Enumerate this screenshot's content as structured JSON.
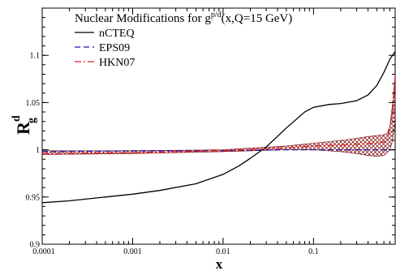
{
  "chart_data": {
    "type": "line",
    "title": "",
    "xlabel": "x",
    "ylabel": {
      "main": "R",
      "sub": "g",
      "sup": "d"
    },
    "xscale": "log",
    "xlim": [
      0.0001,
      0.8
    ],
    "ylim": [
      0.9,
      1.15
    ],
    "grid": false,
    "legend_placement": "top-left",
    "x_ticks": [
      {
        "value": 0.0001,
        "label": "0.0001"
      },
      {
        "value": 0.001,
        "label": "0.001"
      },
      {
        "value": 0.01,
        "label": "0.01"
      },
      {
        "value": 0.1,
        "label": "0.1"
      }
    ],
    "y_ticks": [
      {
        "value": 0.9,
        "label": "0.9"
      },
      {
        "value": 0.95,
        "label": "0.95"
      },
      {
        "value": 1.0,
        "label": "1"
      },
      {
        "value": 1.05,
        "label": "1.05"
      },
      {
        "value": 1.1,
        "label": "1.1"
      }
    ],
    "annotation": {
      "pre": "Nuclear Modifications for g",
      "sup": "p/d",
      "post": "(x,Q=15 GeV)"
    },
    "series": [
      {
        "name": "nCTEQ",
        "color": "#000000",
        "dash": "solid",
        "x": [
          0.0001,
          0.0002,
          0.0005,
          0.001,
          0.002,
          0.005,
          0.01,
          0.015,
          0.02,
          0.03,
          0.05,
          0.08,
          0.1,
          0.15,
          0.2,
          0.3,
          0.4,
          0.5,
          0.6,
          0.7,
          0.8
        ],
        "y": [
          0.944,
          0.946,
          0.95,
          0.953,
          0.957,
          0.964,
          0.974,
          0.983,
          0.991,
          1.003,
          1.023,
          1.04,
          1.045,
          1.048,
          1.049,
          1.052,
          1.058,
          1.068,
          1.082,
          1.096,
          1.104
        ]
      },
      {
        "name": "EPS09",
        "color": "#1a1ab0",
        "dash": "dashed",
        "x": [
          0.0001,
          0.001,
          0.01,
          0.05,
          0.1,
          0.3,
          0.8
        ],
        "y": [
          0.998,
          0.999,
          0.999,
          1.0,
          1.0,
          1.0,
          1.0
        ]
      },
      {
        "name": "HKN07",
        "color": "#e0202a",
        "dash": "dash-dot",
        "x": [
          0.0001,
          0.001,
          0.01,
          0.05,
          0.1,
          0.2,
          0.3,
          0.5,
          0.65,
          0.75,
          0.8
        ],
        "y": [
          0.996,
          0.997,
          0.999,
          1.002,
          1.004,
          1.005,
          1.006,
          1.007,
          1.009,
          1.04,
          1.08
        ]
      }
    ],
    "hkn07_band": {
      "x": [
        0.0001,
        0.001,
        0.01,
        0.05,
        0.1,
        0.2,
        0.3,
        0.4,
        0.5,
        0.6,
        0.65,
        0.7,
        0.75,
        0.8
      ],
      "upper": [
        0.999,
        0.999,
        1.0,
        1.004,
        1.007,
        1.01,
        1.012,
        1.014,
        1.015,
        1.016,
        1.017,
        1.025,
        1.05,
        1.08
      ],
      "lower": [
        0.995,
        0.996,
        0.998,
        1.0,
        1.0,
        0.998,
        0.996,
        0.994,
        0.993,
        0.994,
        0.997,
        1.0,
        1.01,
        1.03
      ]
    }
  }
}
